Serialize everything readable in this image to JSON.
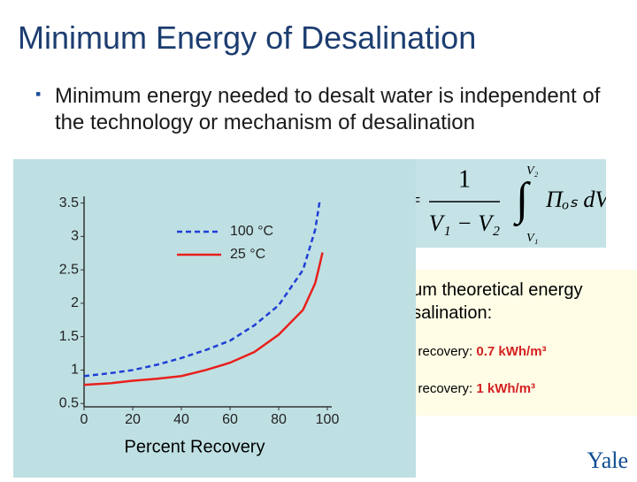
{
  "title": "Minimum Energy of Desalination",
  "bullets": [
    "Minimum energy needed to desalt water is independent of the technology or mechanism of desalination"
  ],
  "equation": {
    "lhs": "=",
    "numerator": "1",
    "denominator": "V₁ − V₂",
    "upper": "V₂",
    "lower": "V₁",
    "integral": "∫",
    "integrand": "Πₒₛ dV"
  },
  "info": {
    "heading": [
      "num theoretical energy",
      "esalination:"
    ],
    "items": [
      {
        "text": "% recovery: ",
        "value": "0.7 kWh/m³"
      },
      {
        "text": "% recovery: ",
        "value": "1 kWh/m³"
      }
    ]
  },
  "logo": "Yale",
  "chart_data": {
    "type": "line",
    "xlabel": "Percent Recovery",
    "x": [
      0,
      10,
      20,
      30,
      40,
      50,
      60,
      70,
      80,
      90,
      95,
      97,
      98
    ],
    "series": [
      {
        "name": "100 °C",
        "color": "#1f3fd6",
        "dash": true,
        "values": [
          0.91,
          0.95,
          1.0,
          1.08,
          1.18,
          1.3,
          1.44,
          1.67,
          1.97,
          2.5,
          3.1,
          3.56,
          null
        ]
      },
      {
        "name": "25 °C",
        "color": "#e8201c",
        "dash": false,
        "values": [
          0.78,
          0.8,
          0.84,
          0.87,
          0.91,
          1.0,
          1.11,
          1.27,
          1.53,
          1.9,
          2.3,
          2.6,
          2.76
        ]
      }
    ],
    "xlim": [
      0,
      100
    ],
    "xticks": [
      0,
      20,
      40,
      60,
      80,
      100
    ],
    "ylim": [
      0.45,
      3.6
    ],
    "yticks": [
      0.5,
      1.0,
      1.5,
      2.0,
      2.5,
      3.0,
      3.5
    ]
  }
}
